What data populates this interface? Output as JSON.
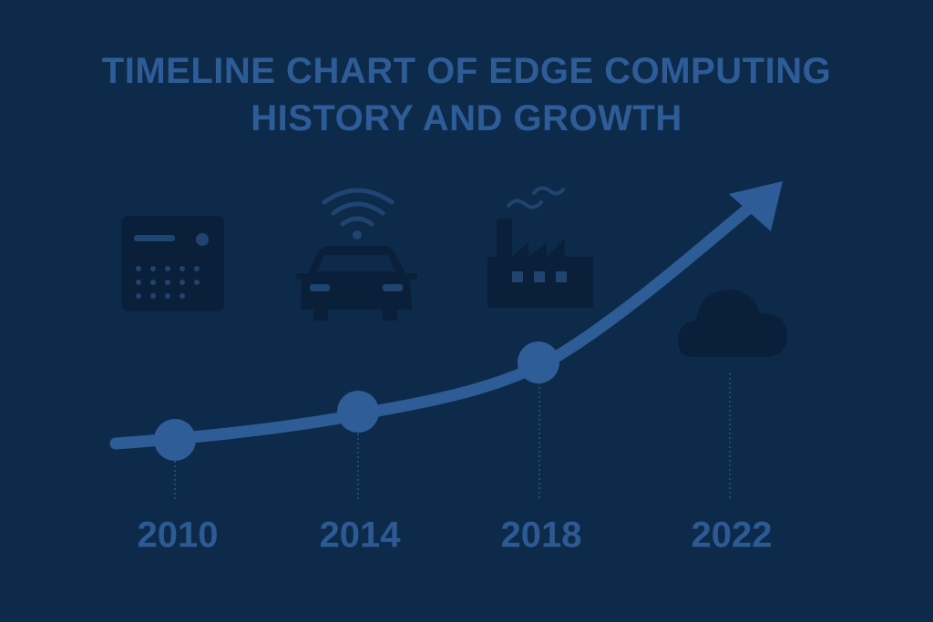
{
  "title": "TIMELINE CHART OF EDGE COMPUTING HISTORY AND GROWTH",
  "milestones": [
    {
      "year": "2010"
    },
    {
      "year": "2014"
    },
    {
      "year": "2018"
    },
    {
      "year": "2022"
    }
  ]
}
